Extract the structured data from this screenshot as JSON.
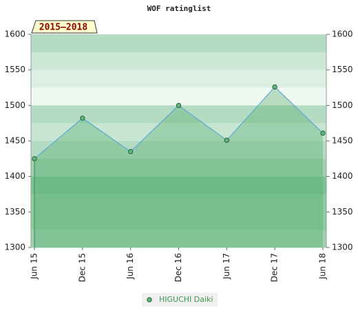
{
  "chart_data": {
    "type": "line",
    "title": "WOF ratinglist",
    "subtitle": "2015–2018",
    "categories": [
      "Jun 15",
      "Dec 15",
      "Jun 16",
      "Dec 16",
      "Jun 17",
      "Dec 17",
      "Jun 18"
    ],
    "series": [
      {
        "name": "HIGUCHI Daiki",
        "color": "#5cb87a",
        "line_color": "#5aa9d6",
        "values": [
          1425,
          1482,
          1435,
          1500,
          1451,
          1526,
          1461
        ]
      }
    ],
    "ylim": [
      1300,
      1600
    ],
    "yticks": [
      1300,
      1350,
      1400,
      1450,
      1500,
      1550,
      1600
    ],
    "y2lim": [
      1300,
      1600
    ],
    "y2ticks": [
      1300,
      1350,
      1400,
      1450,
      1500,
      1550,
      1600
    ],
    "area": true
  }
}
